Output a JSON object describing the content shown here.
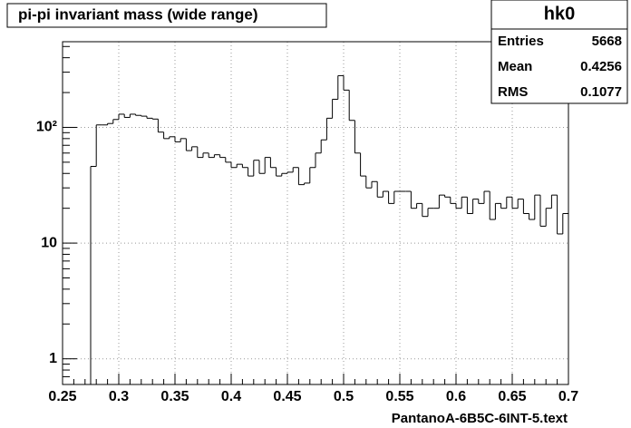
{
  "chart_data": {
    "type": "histogram",
    "title": "pi-pi invariant mass (wide range)",
    "x_label": "PantanoA-6B5C-6INT-5.text",
    "bins": [
      0.25,
      0.255,
      0.26,
      0.265,
      0.27,
      0.275,
      0.28,
      0.285,
      0.29,
      0.295,
      0.3,
      0.305,
      0.31,
      0.315,
      0.32,
      0.325,
      0.33,
      0.335,
      0.34,
      0.345,
      0.35,
      0.355,
      0.36,
      0.365,
      0.37,
      0.375,
      0.38,
      0.385,
      0.39,
      0.395,
      0.4,
      0.405,
      0.41,
      0.415,
      0.42,
      0.425,
      0.43,
      0.435,
      0.44,
      0.445,
      0.45,
      0.455,
      0.46,
      0.465,
      0.47,
      0.475,
      0.48,
      0.485,
      0.49,
      0.495,
      0.5,
      0.505,
      0.51,
      0.515,
      0.52,
      0.525,
      0.53,
      0.535,
      0.54,
      0.545,
      0.55,
      0.555,
      0.56,
      0.565,
      0.57,
      0.575,
      0.58,
      0.585,
      0.59,
      0.595,
      0.6,
      0.605,
      0.61,
      0.615,
      0.62,
      0.625,
      0.63,
      0.635,
      0.64,
      0.645,
      0.65,
      0.655,
      0.66,
      0.665,
      0.67,
      0.675,
      0.68,
      0.685,
      0.69,
      0.695,
      0.7
    ],
    "values": [
      0,
      0,
      0,
      0,
      0,
      46,
      105,
      105,
      108,
      117,
      130,
      122,
      130,
      127,
      125,
      120,
      118,
      91,
      80,
      83,
      75,
      80,
      63,
      68,
      55,
      60,
      55,
      58,
      55,
      50,
      45,
      48,
      45,
      38,
      52,
      40,
      55,
      45,
      38,
      40,
      41,
      45,
      32,
      33,
      45,
      60,
      78,
      120,
      175,
      280,
      210,
      115,
      60,
      38,
      30,
      34,
      25,
      28,
      22,
      28,
      28,
      28,
      20,
      22,
      17,
      20,
      20,
      26,
      25,
      22,
      20,
      25,
      18,
      24,
      22,
      28,
      16,
      22,
      20,
      25,
      20,
      24,
      18,
      16,
      26,
      14,
      20,
      26,
      12,
      18
    ],
    "color": "#000000",
    "xlim": [
      0.25,
      0.7
    ],
    "xticks": [
      0.25,
      0.3,
      0.35,
      0.4,
      0.45,
      0.5,
      0.55,
      0.6,
      0.65,
      0.7
    ],
    "ylim": [
      0.6,
      550
    ],
    "yticks": [
      1,
      10,
      {
        "value": 100,
        "label": "10²"
      }
    ],
    "log_y": true,
    "grid": true,
    "stats": {
      "title": "hk0",
      "rows": [
        [
          "Entries",
          5668
        ],
        [
          "Mean",
          0.4256
        ],
        [
          "RMS",
          0.1077
        ]
      ]
    }
  }
}
